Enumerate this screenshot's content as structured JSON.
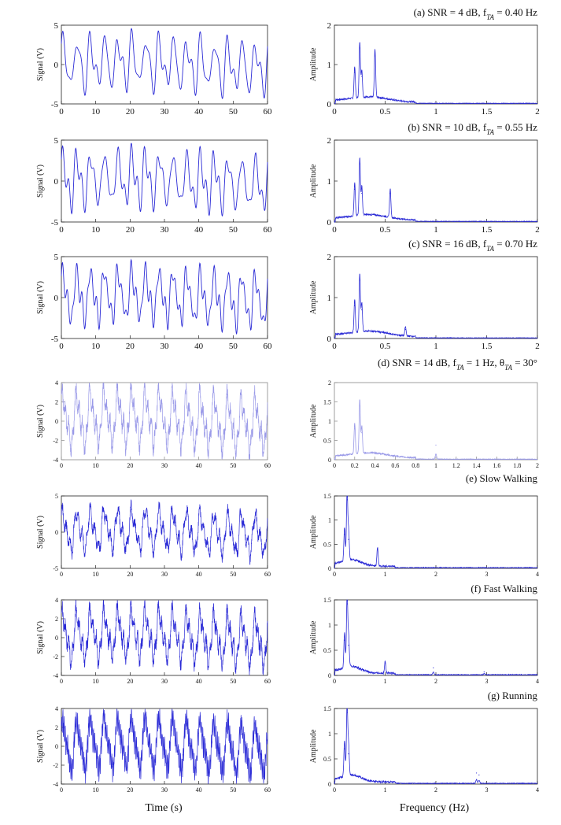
{
  "colors": {
    "trace": "#2b2bd6",
    "trace_light": "#9a9ae8",
    "axis": "#222222"
  },
  "labels": {
    "time_axis": "Time (s)",
    "freq_axis": "Frequency (Hz)",
    "signal_axis": "Signal (V)",
    "amplitude_axis": "Amplitude"
  },
  "panels": [
    {
      "title": "(a) SNR = 4 dB, f",
      "title_sub": "TA",
      "title_tail": " = 0.40 Hz",
      "time": {
        "yticks": [
          -5,
          0,
          5
        ],
        "ylim": [
          -5,
          5
        ],
        "xticks": [
          0,
          10,
          20,
          30,
          40,
          50,
          60
        ]
      },
      "freq": {
        "yticks": [
          0,
          1,
          2
        ],
        "ylim": [
          0,
          2
        ],
        "xlim": [
          0,
          2
        ],
        "xticks": [
          0,
          0.5,
          1,
          1.5,
          2
        ],
        "xtick_labels": [
          "0",
          "0.5",
          "1",
          "1.5",
          "2"
        ]
      }
    },
    {
      "title": "(b) SNR = 10 dB, f",
      "title_sub": "TA",
      "title_tail": " = 0.55 Hz",
      "time": {
        "yticks": [
          -5,
          0,
          5
        ],
        "ylim": [
          -5,
          5
        ],
        "xticks": [
          0,
          10,
          20,
          30,
          40,
          50,
          60
        ]
      },
      "freq": {
        "yticks": [
          0,
          1,
          2
        ],
        "ylim": [
          0,
          2
        ],
        "xlim": [
          0,
          2
        ],
        "xticks": [
          0,
          0.5,
          1,
          1.5,
          2
        ],
        "xtick_labels": [
          "0",
          "0.5",
          "1",
          "1.5",
          "2"
        ]
      }
    },
    {
      "title": "(c) SNR = 16 dB, f",
      "title_sub": "TA",
      "title_tail": " = 0.70 Hz",
      "time": {
        "yticks": [
          -5,
          0,
          5
        ],
        "ylim": [
          -5,
          5
        ],
        "xticks": [
          0,
          10,
          20,
          30,
          40,
          50,
          60
        ]
      },
      "freq": {
        "yticks": [
          0,
          1,
          2
        ],
        "ylim": [
          0,
          2
        ],
        "xlim": [
          0,
          2
        ],
        "xticks": [
          0,
          0.5,
          1,
          1.5,
          2
        ],
        "xtick_labels": [
          "0",
          "0.5",
          "1",
          "1.5",
          "2"
        ]
      }
    },
    {
      "title": "(d) SNR = 14 dB, f",
      "title_sub": "TA",
      "title_tail": " = 1 Hz, θ",
      "title_sub2": "TA",
      "title_tail2": " = 30°",
      "time": {
        "yticks": [
          -4,
          -2,
          0,
          2,
          4
        ],
        "ylim": [
          -4,
          4
        ],
        "xticks": [
          0,
          10,
          20,
          30,
          40,
          50,
          60
        ]
      },
      "freq": {
        "yticks": [
          0,
          0.5,
          1,
          1.5,
          2
        ],
        "ylim": [
          0,
          2
        ],
        "xlim": [
          0,
          2
        ],
        "xticks": [
          0,
          0.2,
          0.4,
          0.6,
          0.8,
          1,
          1.2,
          1.4,
          1.6,
          1.8,
          2
        ],
        "xtick_labels": [
          "0",
          "0.2",
          "0.4",
          "0.6",
          "0.8",
          "1",
          "1.2",
          "1.4",
          "1.6",
          "1.8",
          "2"
        ]
      }
    },
    {
      "title": "(e) Slow Walking",
      "time": {
        "yticks": [
          -5,
          0,
          5
        ],
        "ylim": [
          -5,
          5
        ],
        "xticks": [
          0,
          10,
          20,
          30,
          40,
          50,
          60
        ]
      },
      "freq": {
        "yticks": [
          0,
          0.5,
          1,
          1.5
        ],
        "ylim": [
          0,
          1.5
        ],
        "xlim": [
          0,
          4
        ],
        "xticks": [
          0,
          1,
          2,
          3,
          4
        ],
        "xtick_labels": [
          "0",
          "1",
          "2",
          "3",
          "4"
        ]
      }
    },
    {
      "title": "(f) Fast Walking",
      "time": {
        "yticks": [
          -4,
          -2,
          0,
          2,
          4
        ],
        "ylim": [
          -4,
          4
        ],
        "xticks": [
          0,
          10,
          20,
          30,
          40,
          50,
          60
        ]
      },
      "freq": {
        "yticks": [
          0,
          0.5,
          1,
          1.5
        ],
        "ylim": [
          0,
          1.5
        ],
        "xlim": [
          0,
          4
        ],
        "xticks": [
          0,
          1,
          2,
          3,
          4
        ],
        "xtick_labels": [
          "0",
          "1",
          "2",
          "3",
          "4"
        ]
      }
    },
    {
      "title": "(g) Running",
      "time": {
        "yticks": [
          -4,
          -2,
          0,
          2,
          4
        ],
        "ylim": [
          -4,
          4
        ],
        "xticks": [
          0,
          10,
          20,
          30,
          40,
          50,
          60
        ]
      },
      "freq": {
        "yticks": [
          0,
          0.5,
          1,
          1.5
        ],
        "ylim": [
          0,
          1.5
        ],
        "xlim": [
          0,
          4
        ],
        "xticks": [
          0,
          1,
          2,
          3,
          4
        ],
        "xtick_labels": [
          "0",
          "1",
          "2",
          "3",
          "4"
        ]
      }
    }
  ],
  "chart_data": [
    {
      "type": "line",
      "panel": "a-time",
      "ylabel": "Signal (V)",
      "xlim": [
        0,
        60
      ],
      "ylim": [
        -5,
        5
      ],
      "resp_freq_hz": 0.25,
      "ta_freq_hz": 0.4,
      "approx_amplitude_v": 3.5
    },
    {
      "type": "line",
      "panel": "a-spectrum",
      "ylabel": "Amplitude",
      "xlim": [
        0,
        2
      ],
      "ylim": [
        0,
        2
      ],
      "peaks": [
        {
          "x": 0.2,
          "y": 0.8
        },
        {
          "x": 0.25,
          "y": 1.42
        },
        {
          "x": 0.27,
          "y": 0.7
        },
        {
          "x": 0.4,
          "y": 1.22
        }
      ]
    },
    {
      "type": "line",
      "panel": "b-time",
      "ylabel": "Signal (V)",
      "xlim": [
        0,
        60
      ],
      "ylim": [
        -5,
        5
      ],
      "resp_freq_hz": 0.25,
      "ta_freq_hz": 0.55,
      "approx_amplitude_v": 3.5
    },
    {
      "type": "line",
      "panel": "b-spectrum",
      "ylabel": "Amplitude",
      "xlim": [
        0,
        2
      ],
      "ylim": [
        0,
        2
      ],
      "peaks": [
        {
          "x": 0.2,
          "y": 0.8
        },
        {
          "x": 0.25,
          "y": 1.42
        },
        {
          "x": 0.27,
          "y": 0.7
        },
        {
          "x": 0.55,
          "y": 0.7
        }
      ]
    },
    {
      "type": "line",
      "panel": "c-time",
      "ylabel": "Signal (V)",
      "xlim": [
        0,
        60
      ],
      "ylim": [
        -5,
        5
      ],
      "resp_freq_hz": 0.25,
      "ta_freq_hz": 0.7,
      "approx_amplitude_v": 3.5
    },
    {
      "type": "line",
      "panel": "c-spectrum",
      "ylabel": "Amplitude",
      "xlim": [
        0,
        2
      ],
      "ylim": [
        0,
        2
      ],
      "peaks": [
        {
          "x": 0.2,
          "y": 0.8
        },
        {
          "x": 0.25,
          "y": 1.42
        },
        {
          "x": 0.27,
          "y": 0.7
        },
        {
          "x": 0.7,
          "y": 0.22
        }
      ]
    },
    {
      "type": "line",
      "panel": "d-time",
      "ylabel": "Signal (V)",
      "xlim": [
        0,
        60
      ],
      "ylim": [
        -4,
        4
      ],
      "resp_freq_hz": 0.25,
      "ta_freq_hz": 1.0,
      "approx_amplitude_v": 3.0
    },
    {
      "type": "line",
      "panel": "d-spectrum",
      "ylabel": "Amplitude",
      "xlim": [
        0,
        2
      ],
      "ylim": [
        0,
        2
      ],
      "peaks": [
        {
          "x": 0.2,
          "y": 0.8
        },
        {
          "x": 0.25,
          "y": 1.4
        },
        {
          "x": 0.27,
          "y": 0.7
        },
        {
          "x": 1.0,
          "y": 0.38
        }
      ]
    },
    {
      "type": "line",
      "panel": "e-time",
      "ylabel": "Signal (V)",
      "xlim": [
        0,
        60
      ],
      "ylim": [
        -5,
        5
      ],
      "resp_freq_hz": 0.25,
      "ta_freq_hz": 0.85,
      "approx_amplitude_v": 3.0
    },
    {
      "type": "line",
      "panel": "e-spectrum",
      "ylabel": "Amplitude",
      "xlim": [
        0,
        4
      ],
      "ylim": [
        0,
        1.5
      ],
      "peaks": [
        {
          "x": 0.2,
          "y": 0.7
        },
        {
          "x": 0.25,
          "y": 1.42
        },
        {
          "x": 0.28,
          "y": 0.6
        },
        {
          "x": 0.85,
          "y": 0.4
        }
      ]
    },
    {
      "type": "line",
      "panel": "f-time",
      "ylabel": "Signal (V)",
      "xlim": [
        0,
        60
      ],
      "ylim": [
        -4,
        4
      ],
      "resp_freq_hz": 0.25,
      "ta_freq_hz": 1.0,
      "approx_amplitude_v": 2.8
    },
    {
      "type": "line",
      "panel": "f-spectrum",
      "ylabel": "Amplitude",
      "xlim": [
        0,
        4
      ],
      "ylim": [
        0,
        1.5
      ],
      "peaks": [
        {
          "x": 0.2,
          "y": 0.7
        },
        {
          "x": 0.25,
          "y": 1.42
        },
        {
          "x": 0.28,
          "y": 0.6
        },
        {
          "x": 1.0,
          "y": 0.25
        },
        {
          "x": 1.95,
          "y": 0.15
        },
        {
          "x": 2.95,
          "y": 0.07
        }
      ]
    },
    {
      "type": "line",
      "panel": "g-time",
      "ylabel": "Signal (V)",
      "xlim": [
        0,
        60
      ],
      "ylim": [
        -4,
        4
      ],
      "resp_freq_hz": 0.25,
      "ta_freq_hz": 2.8,
      "approx_amplitude_v": 3.0
    },
    {
      "type": "line",
      "panel": "g-spectrum",
      "ylabel": "Amplitude",
      "xlim": [
        0,
        4
      ],
      "ylim": [
        0,
        1.5
      ],
      "peaks": [
        {
          "x": 0.2,
          "y": 0.7
        },
        {
          "x": 0.25,
          "y": 1.42
        },
        {
          "x": 0.28,
          "y": 0.6
        },
        {
          "x": 2.8,
          "y": 0.22
        },
        {
          "x": 2.85,
          "y": 0.18
        }
      ]
    }
  ]
}
